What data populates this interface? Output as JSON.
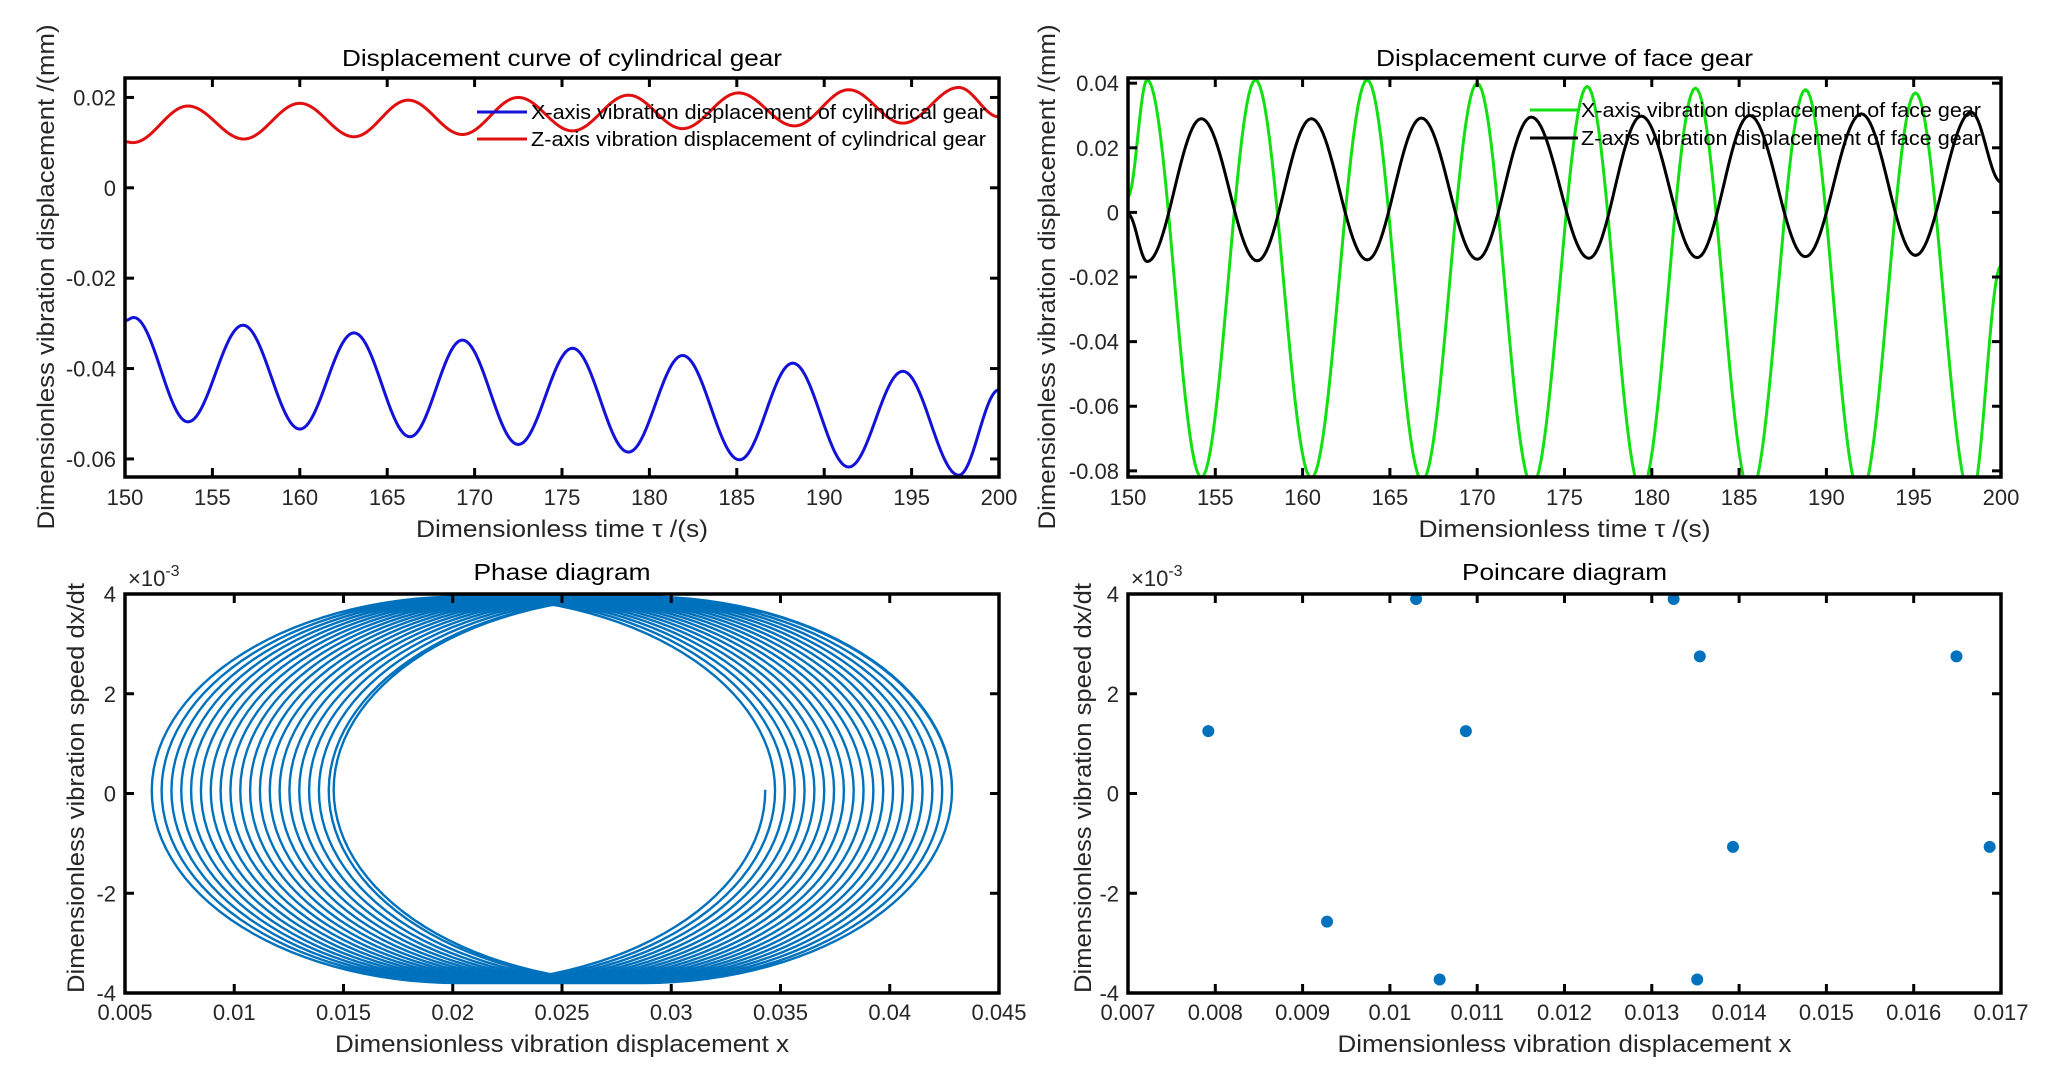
{
  "chart_data": [
    {
      "type": "line",
      "title": "Displacement curve of cylindrical gear",
      "xlabel": "Dimensionless time τ /(s)",
      "ylabel": "Dimensionless vibration displacement /(mm)",
      "xlim": [
        150,
        200
      ],
      "ylim": [
        -0.064,
        0.0243
      ],
      "xticks": [
        150,
        155,
        160,
        165,
        170,
        175,
        180,
        185,
        190,
        195,
        200
      ],
      "xtick_labels": [
        "150",
        "155",
        "160",
        "165",
        "170",
        "175",
        "180",
        "185",
        "190",
        "195",
        "200"
      ],
      "yticks": [
        -0.06,
        -0.04,
        -0.02,
        0,
        0.02
      ],
      "ytick_labels": [
        "-0.06",
        "-0.04",
        "-0.02",
        "0",
        "0.02"
      ],
      "grid": false,
      "legend_location": "top-right",
      "series": [
        {
          "name": "X-axis vibration displacement of cylindrical gear",
          "color": "#1212d8",
          "points": [
            [
              150,
              -0.0294
            ],
            [
              150.5,
              -0.0287
            ],
            [
              153.6,
              -0.0518
            ],
            [
              156.75,
              -0.0304
            ],
            [
              160.0,
              -0.0534
            ],
            [
              163.1,
              -0.0321
            ],
            [
              166.3,
              -0.0551
            ],
            [
              169.3,
              -0.0337
            ],
            [
              172.5,
              -0.0568
            ],
            [
              175.6,
              -0.0355
            ],
            [
              178.8,
              -0.0585
            ],
            [
              181.9,
              -0.0371
            ],
            [
              185.15,
              -0.0602
            ],
            [
              188.2,
              -0.0388
            ],
            [
              191.4,
              -0.0618
            ],
            [
              194.5,
              -0.0406
            ],
            [
              197.7,
              -0.0636
            ],
            [
              200,
              -0.0447
            ]
          ]
        },
        {
          "name": "Z-axis vibration displacement of cylindrical gear",
          "color": "#e01010",
          "points": [
            [
              150,
              0.0102
            ],
            [
              150.45,
              0.01
            ],
            [
              153.6,
              0.0181
            ],
            [
              156.8,
              0.0108
            ],
            [
              160.0,
              0.0187
            ],
            [
              163.1,
              0.0113
            ],
            [
              166.2,
              0.0194
            ],
            [
              169.3,
              0.0118
            ],
            [
              172.5,
              0.02
            ],
            [
              175.6,
              0.0126
            ],
            [
              178.8,
              0.0205
            ],
            [
              181.9,
              0.0131
            ],
            [
              185.1,
              0.021
            ],
            [
              188.3,
              0.0137
            ],
            [
              191.4,
              0.0217
            ],
            [
              194.5,
              0.0143
            ],
            [
              197.7,
              0.0222
            ],
            [
              200,
              0.0157
            ]
          ]
        }
      ]
    },
    {
      "type": "line",
      "title": "Displacement curve of face gear",
      "xlabel": "Dimensionless time τ /(s)",
      "ylabel": "Dimensionless vibration displacement /(mm)",
      "xlim": [
        150,
        200
      ],
      "ylim": [
        -0.0819,
        0.0416
      ],
      "xticks": [
        150,
        155,
        160,
        165,
        170,
        175,
        180,
        185,
        190,
        195,
        200
      ],
      "xtick_labels": [
        "150",
        "155",
        "160",
        "165",
        "170",
        "175",
        "180",
        "185",
        "190",
        "195",
        "200"
      ],
      "yticks": [
        -0.08,
        -0.06,
        -0.04,
        -0.02,
        0,
        0.02,
        0.04
      ],
      "ytick_labels": [
        "-0.08",
        "-0.06",
        "-0.04",
        "-0.02",
        "0",
        "0.02",
        "0.04"
      ],
      "grid": false,
      "legend_location": "top-right",
      "series": [
        {
          "name": "X-axis vibration displacement of face gear",
          "color": "#12e012",
          "points": [
            [
              150,
              0.005
            ],
            [
              151.1,
              0.041
            ],
            [
              154.2,
              -0.082
            ],
            [
              157.3,
              0.041
            ],
            [
              160.5,
              -0.0822
            ],
            [
              163.7,
              0.041
            ],
            [
              166.85,
              -0.083
            ],
            [
              170.0,
              0.04
            ],
            [
              173.15,
              -0.0845
            ],
            [
              176.3,
              0.039
            ],
            [
              179.4,
              -0.086
            ],
            [
              182.5,
              0.0385
            ],
            [
              185.65,
              -0.087
            ],
            [
              188.8,
              0.038
            ],
            [
              191.95,
              -0.0878
            ],
            [
              195.1,
              0.037
            ],
            [
              198.3,
              -0.0886
            ],
            [
              200,
              -0.0166
            ]
          ]
        },
        {
          "name": "Z-axis vibration displacement of face gear",
          "color": "#000000",
          "points": [
            [
              150,
              -0.0005
            ],
            [
              151.1,
              -0.0152
            ],
            [
              154.2,
              0.029
            ],
            [
              157.4,
              -0.015
            ],
            [
              160.5,
              0.029
            ],
            [
              163.7,
              -0.0147
            ],
            [
              166.8,
              0.0292
            ],
            [
              170.0,
              -0.0145
            ],
            [
              173.1,
              0.0295
            ],
            [
              176.4,
              -0.0142
            ],
            [
              179.4,
              0.0298
            ],
            [
              182.6,
              -0.014
            ],
            [
              185.6,
              0.03
            ],
            [
              188.8,
              -0.0137
            ],
            [
              192.0,
              0.0305
            ],
            [
              195.1,
              -0.0133
            ],
            [
              198.3,
              0.031
            ],
            [
              200,
              0.0094
            ]
          ]
        }
      ]
    },
    {
      "type": "line",
      "title": "Phase diagram",
      "xlabel": "Dimensionless vibration displacement x",
      "ylabel": "Dimensionless vibration speed dx/dt",
      "y_multiplier": "×10",
      "y_exponent": "-3",
      "xlim": [
        0.005,
        0.045
      ],
      "ylim": [
        -4,
        4
      ],
      "xticks": [
        0.005,
        0.01,
        0.015,
        0.02,
        0.025,
        0.03,
        0.035,
        0.04,
        0.045
      ],
      "xtick_labels": [
        "0.005",
        "0.01",
        "0.015",
        "0.02",
        "0.025",
        "0.03",
        "0.035",
        "0.04",
        "0.045"
      ],
      "yticks": [
        -4,
        -2,
        0,
        2,
        4
      ],
      "ytick_labels": [
        "-4",
        "-2",
        "0",
        "2",
        "4"
      ],
      "grid": false,
      "series": [
        {
          "color": "#0072BD",
          "v_max": 3.95,
          "v_min": -3.8,
          "loops_x_range": [
            [
              0.006,
              0.0343
            ],
            [
              0.00645,
              0.03475
            ],
            [
              0.0069,
              0.0352
            ],
            [
              0.00735,
              0.03565
            ],
            [
              0.0078,
              0.0361
            ],
            [
              0.00825,
              0.03655
            ],
            [
              0.0087,
              0.037
            ],
            [
              0.00915,
              0.03745
            ],
            [
              0.0096,
              0.0379
            ],
            [
              0.01005,
              0.03835
            ],
            [
              0.0105,
              0.0388
            ],
            [
              0.01095,
              0.03925
            ],
            [
              0.0114,
              0.0397
            ],
            [
              0.01185,
              0.04015
            ],
            [
              0.0123,
              0.0406
            ],
            [
              0.01275,
              0.04105
            ],
            [
              0.0132,
              0.0415
            ],
            [
              0.01365,
              0.04195
            ],
            [
              0.0141,
              0.0424
            ],
            [
              0.01455,
              0.04285
            ]
          ]
        }
      ]
    },
    {
      "type": "scatter",
      "title": "Poincare diagram",
      "xlabel": "Dimensionless vibration displacement x",
      "ylabel": "Dimensionless vibration speed dx/dt",
      "y_multiplier": "×10",
      "y_exponent": "-3",
      "xlim": [
        0.007,
        0.017
      ],
      "ylim": [
        -4,
        4
      ],
      "xticks": [
        0.007,
        0.008,
        0.009,
        0.01,
        0.011,
        0.012,
        0.013,
        0.014,
        0.015,
        0.016,
        0.017
      ],
      "xtick_labels": [
        "0.007",
        "0.008",
        "0.009",
        "0.01",
        "0.011",
        "0.012",
        "0.013",
        "0.014",
        "0.015",
        "0.016",
        "0.017"
      ],
      "yticks": [
        -4,
        -2,
        0,
        2,
        4
      ],
      "ytick_labels": [
        "-4",
        "-2",
        "0",
        "2",
        "4"
      ],
      "grid": false,
      "series": [
        {
          "color": "#0072BD",
          "points": [
            [
              0.00792,
              1.25
            ],
            [
              0.00928,
              -2.57
            ],
            [
              0.0103,
              3.9
            ],
            [
              0.01057,
              -3.73
            ],
            [
              0.01087,
              1.25
            ],
            [
              0.01325,
              3.9
            ],
            [
              0.01352,
              -3.73
            ],
            [
              0.01355,
              2.75
            ],
            [
              0.01393,
              -1.07
            ],
            [
              0.01649,
              2.75
            ],
            [
              0.01687,
              -1.07
            ]
          ]
        }
      ]
    }
  ]
}
